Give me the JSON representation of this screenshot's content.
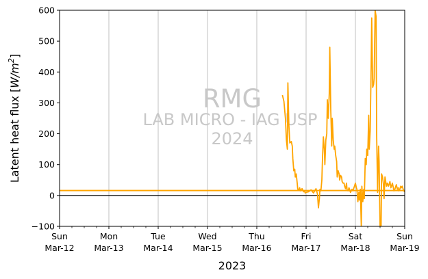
{
  "chart_data": {
    "type": "line",
    "title": "",
    "xlabel": "2023",
    "ylabel": "Latent heat flux [W/m²]",
    "ylabel_parts": {
      "prefix": "Latent heat flux [",
      "unit_base": "W/m",
      "unit_exp": "2",
      "suffix": "]"
    },
    "ylim": [
      -100,
      600
    ],
    "xlim_days": [
      0,
      7
    ],
    "yticks": [
      -100,
      0,
      100,
      200,
      300,
      400,
      500,
      600
    ],
    "xticks": [
      {
        "day": 0,
        "l1": "Sun",
        "l2": "Mar-12"
      },
      {
        "day": 1,
        "l1": "Mon",
        "l2": "Mar-13"
      },
      {
        "day": 2,
        "l1": "Tue",
        "l2": "Mar-14"
      },
      {
        "day": 3,
        "l1": "Wed",
        "l2": "Mar-15"
      },
      {
        "day": 4,
        "l1": "Thu",
        "l2": "Mar-16"
      },
      {
        "day": 5,
        "l1": "Fri",
        "l2": "Mar-17"
      },
      {
        "day": 6,
        "l1": "Sat",
        "l2": "Mar-18"
      },
      {
        "day": 7,
        "l1": "Sun",
        "l2": "Mar-19"
      }
    ],
    "grid": "vertical",
    "zero_line": 0,
    "series": [
      {
        "color": "#FFA500",
        "style": "line",
        "x": [
          4.52,
          4.55,
          4.58,
          4.6,
          4.62,
          4.63,
          4.65,
          4.67,
          4.7,
          4.72,
          4.73,
          4.75,
          4.77,
          4.78,
          4.8,
          4.82,
          4.83,
          4.85,
          4.87,
          4.88,
          4.9,
          4.92,
          4.93,
          4.95,
          4.97,
          4.98,
          5.0,
          5.05,
          5.1,
          5.15,
          5.2,
          5.23,
          5.25,
          5.27,
          5.28,
          5.3,
          5.32,
          5.33,
          5.35,
          5.37,
          5.38,
          5.4,
          5.42,
          5.43,
          5.45,
          5.47,
          5.48,
          5.5,
          5.52,
          5.53,
          5.55,
          5.57,
          5.58,
          5.6,
          5.62,
          5.63,
          5.65,
          5.67,
          5.68,
          5.7,
          5.72,
          5.73,
          5.75,
          5.77,
          5.78,
          5.8,
          5.82,
          5.83,
          5.85,
          5.87,
          5.88,
          5.9,
          5.93,
          5.95,
          5.97,
          5.98,
          6.0,
          6.02,
          6.03,
          6.05,
          6.07,
          6.08,
          6.1,
          6.12,
          6.13,
          6.15,
          6.17,
          6.18,
          6.2,
          6.22,
          6.23,
          6.25,
          6.27,
          6.28,
          6.3,
          6.32,
          6.33,
          6.35,
          6.37,
          6.38,
          6.4,
          6.42,
          6.43,
          6.45,
          6.47,
          6.48,
          6.5,
          6.52,
          6.53,
          6.55,
          6.57,
          6.58,
          6.6,
          6.62,
          6.63,
          6.65,
          6.67,
          6.68,
          6.7,
          6.72,
          6.73,
          6.75,
          6.77,
          6.78,
          6.8,
          6.82,
          6.83,
          6.85,
          6.87,
          6.88,
          6.9,
          6.92,
          6.93,
          6.95,
          6.97,
          6.98,
          7.0
        ],
        "y": [
          325,
          305,
          250,
          180,
          150,
          365,
          230,
          170,
          175,
          160,
          120,
          80,
          85,
          60,
          70,
          40,
          20,
          18,
          25,
          15,
          20,
          22,
          18,
          12,
          15,
          8,
          10,
          12,
          18,
          8,
          22,
          5,
          -40,
          -10,
          20,
          15,
          50,
          110,
          190,
          150,
          100,
          180,
          200,
          310,
          250,
          330,
          480,
          280,
          160,
          250,
          180,
          150,
          160,
          130,
          110,
          60,
          80,
          70,
          50,
          65,
          60,
          45,
          40,
          40,
          30,
          22,
          40,
          18,
          15,
          25,
          20,
          10,
          20,
          15,
          25,
          30,
          40,
          25,
          20,
          -20,
          10,
          -15,
          20,
          -100,
          30,
          -20,
          20,
          -10,
          120,
          100,
          150,
          130,
          260,
          150,
          210,
          420,
          575,
          350,
          360,
          380,
          600,
          580,
          200,
          10,
          160,
          110,
          -100,
          -130,
          70,
          60,
          35,
          -10,
          60,
          40,
          30,
          40,
          30,
          35,
          45,
          25,
          30,
          40,
          25,
          15,
          20,
          30,
          35,
          20,
          25,
          15,
          20,
          30,
          25,
          30,
          20,
          15,
          12
        ],
        "clip_to_axes": true
      },
      {
        "color": "#FFA500",
        "style": "constant",
        "value": 16
      }
    ],
    "annotations": [
      {
        "text": "RMG",
        "role": "watermark-large"
      },
      {
        "text": "LAB MICRO - IAG USP",
        "role": "watermark"
      },
      {
        "text": "2024",
        "role": "watermark"
      }
    ]
  }
}
